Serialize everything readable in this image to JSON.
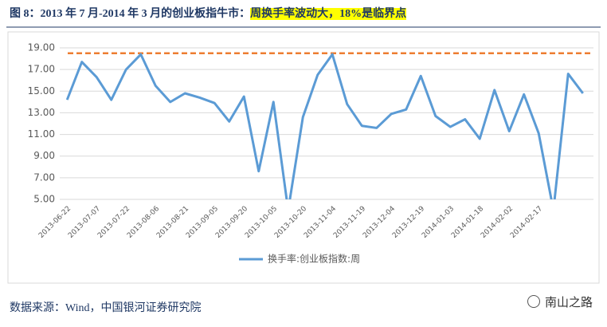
{
  "header": {
    "title": "图 8：2013 年 7 月-2014 年 3 月的创业板指牛市：",
    "title_highlight": "周换手率波动大，18%是临界点"
  },
  "chart_data": {
    "type": "line",
    "categories": [
      "2013-06-22",
      null,
      "2013-07-07",
      null,
      "2013-07-22",
      null,
      "2013-08-06",
      null,
      "2013-08-21",
      null,
      "2013-09-05",
      null,
      "2013-09-20",
      null,
      "2013-10-05",
      null,
      "2013-10-20",
      null,
      "2013-11-04",
      null,
      "2013-11-19",
      null,
      "2013-12-04",
      null,
      "2013-12-19",
      null,
      "2014-01-03",
      null,
      "2014-01-18",
      null,
      "2014-02-02",
      null,
      "2014-02-17",
      null,
      null,
      null
    ],
    "series": [
      {
        "name": "换手率:创业板指数:周",
        "color": "#5B9BD5",
        "values": [
          14.2,
          17.7,
          16.3,
          14.2,
          17.0,
          18.4,
          15.5,
          14.0,
          14.8,
          14.4,
          13.9,
          12.2,
          14.5,
          7.6,
          14.0,
          4.0,
          12.6,
          16.5,
          18.4,
          13.8,
          11.8,
          11.6,
          12.9,
          13.3,
          16.4,
          12.7,
          11.7,
          12.4,
          10.6,
          15.1,
          11.3,
          14.7,
          11.1,
          4.0,
          16.6,
          14.8
        ]
      }
    ],
    "reference_line": {
      "value": 18.5,
      "color": "#ED7D31"
    },
    "ylim": [
      5,
      19
    ],
    "yticks": [
      {
        "value": 5,
        "label": "5.00"
      },
      {
        "value": 7,
        "label": "7.00"
      },
      {
        "value": 9,
        "label": "9.00"
      },
      {
        "value": 11,
        "label": "11.00"
      },
      {
        "value": 13,
        "label": "13.00"
      },
      {
        "value": 15,
        "label": "15.00"
      },
      {
        "value": 17,
        "label": "17.00"
      },
      {
        "value": 19,
        "label": "19.00"
      }
    ],
    "grid": true,
    "legend": "bottom"
  },
  "footer": {
    "source": "数据来源：Wind，中国银河证券研究院",
    "watermark": "南山之路"
  }
}
